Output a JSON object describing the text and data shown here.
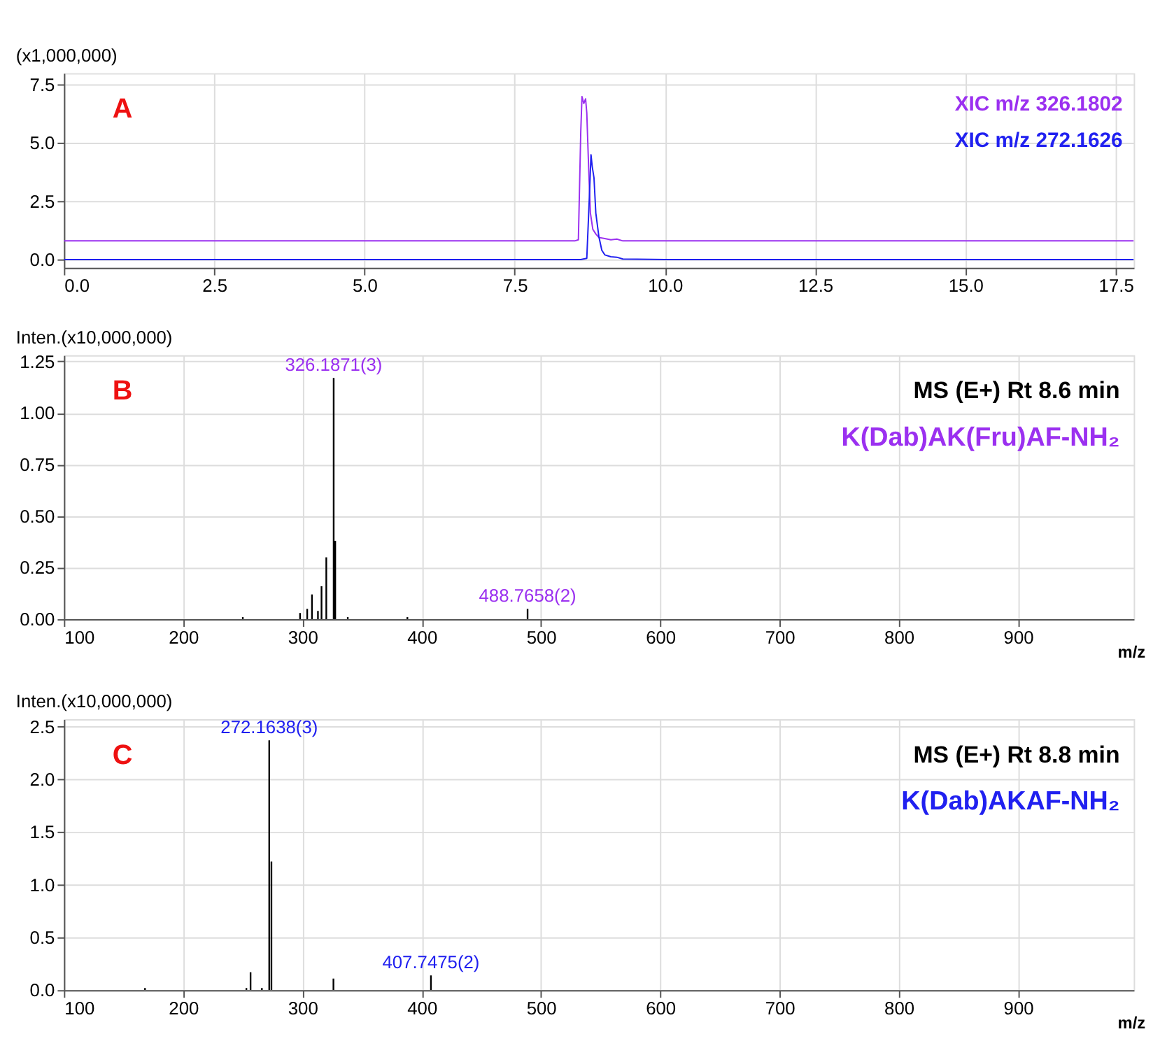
{
  "chart_data": [
    {
      "type": "line",
      "ylabel": "(x1,000,000)",
      "xlim": [
        0,
        17.8
      ],
      "ylim": [
        -0.35,
        8.0
      ],
      "xticks": [
        {
          "value": 0,
          "label": "0.0"
        },
        2.5,
        {
          "value": 5,
          "label": "5.0"
        },
        7.5,
        {
          "value": 10,
          "label": "10.0"
        },
        12.5,
        {
          "value": 15,
          "label": "15.0"
        },
        17.5
      ],
      "yticks": [
        {
          "value": 0,
          "label": "0.0"
        },
        2.5,
        {
          "value": 5,
          "label": "5.0"
        },
        7.5
      ],
      "grid": true,
      "legend": "top right",
      "line_style": "solid",
      "marker": "none",
      "annotations": [
        "A"
      ],
      "series": [
        {
          "name": "XIC m/z 326.1802",
          "color": "#9b30f0",
          "x": [
            0,
            2,
            4,
            6,
            8,
            8.5,
            8.56,
            8.6,
            8.62,
            8.65,
            8.68,
            8.7,
            8.73,
            8.76,
            8.8,
            8.85,
            8.9,
            9.0,
            9.1,
            9.2,
            9.3,
            10,
            12,
            14,
            16,
            17.8
          ],
          "values": [
            0.8,
            0.8,
            0.8,
            0.8,
            0.8,
            0.8,
            0.85,
            5.5,
            7.0,
            6.7,
            6.9,
            6.3,
            4.0,
            2.0,
            1.3,
            1.1,
            0.95,
            0.9,
            0.85,
            0.88,
            0.8,
            0.8,
            0.8,
            0.8,
            0.8,
            0.8
          ]
        },
        {
          "name": "XIC m/z 272.1626",
          "color": "#2020f0",
          "x": [
            0,
            2,
            4,
            6,
            8,
            8.6,
            8.7,
            8.74,
            8.77,
            8.79,
            8.82,
            8.85,
            8.9,
            8.95,
            9.0,
            9.1,
            9.2,
            9.3,
            10,
            12,
            14,
            16,
            17.8
          ],
          "values": [
            0,
            0,
            0,
            0,
            0,
            0,
            0.05,
            2.5,
            4.5,
            4.0,
            3.5,
            2.0,
            1.0,
            0.4,
            0.2,
            0.12,
            0.1,
            0.02,
            0,
            0,
            0,
            0,
            0
          ]
        }
      ]
    },
    {
      "type": "bar",
      "ylabel": "Inten.(x10,000,000)",
      "xlabel": "m/z",
      "xlim": [
        100,
        997
      ],
      "ylim": [
        0,
        1.28
      ],
      "xticks": [
        100,
        200,
        300,
        400,
        500,
        600,
        700,
        800,
        900
      ],
      "yticks": [
        {
          "value": 0,
          "label": "0.00"
        },
        0.25,
        {
          "value": 0.5,
          "label": "0.50"
        },
        0.75,
        {
          "value": 1,
          "label": "1.00"
        },
        1.25
      ],
      "grid": true,
      "annotations": [
        "B",
        "MS (E+) Rt 8.6 min",
        "K(Dab)AK(Fru)AF-NH₂",
        {
          "text": "326.1871(3)",
          "x": 326.19,
          "y": 1.17
        },
        {
          "text": "488.7658(2)",
          "x": 488.77,
          "y": 0.05
        }
      ],
      "x": [
        250,
        298,
        304,
        308,
        313,
        316,
        320,
        326.19,
        327.5,
        338,
        388,
        488.77
      ],
      "series": [
        {
          "color": "#000000",
          "values": [
            0.01,
            0.03,
            0.05,
            0.12,
            0.04,
            0.16,
            0.3,
            1.17,
            0.38,
            0.01,
            0.01,
            0.05
          ]
        }
      ]
    },
    {
      "type": "bar",
      "ylabel": "Inten.(x10,000,000)",
      "xlabel": "m/z",
      "xlim": [
        100,
        997
      ],
      "ylim": [
        0,
        2.57
      ],
      "xticks": [
        100,
        200,
        300,
        400,
        500,
        600,
        700,
        800,
        900
      ],
      "yticks": [
        {
          "value": 0,
          "label": "0.0"
        },
        0.5,
        {
          "value": 1,
          "label": "1.0"
        },
        1.5,
        {
          "value": 2,
          "label": "2.0"
        },
        2.5
      ],
      "grid": true,
      "annotations": [
        "C",
        "MS (E+) Rt 8.8 min",
        "K(Dab)AKAF-NH₂",
        {
          "text": "272.1638(3)",
          "x": 272.16,
          "y": 2.37
        },
        {
          "text": "407.7475(2)",
          "x": 407.75,
          "y": 0.14
        }
      ],
      "x": [
        168,
        253,
        256.5,
        266,
        272.16,
        274,
        326,
        407.75
      ],
      "series": [
        {
          "color": "#000000",
          "values": [
            0.02,
            0.02,
            0.17,
            0.02,
            2.37,
            1.22,
            0.11,
            0.14
          ]
        }
      ]
    }
  ]
}
